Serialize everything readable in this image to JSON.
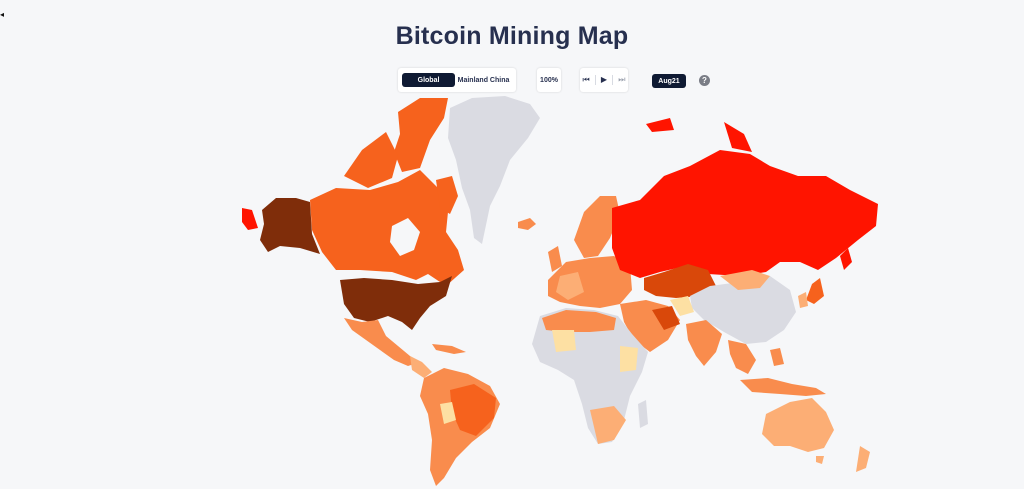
{
  "title": "Bitcoin Mining Map",
  "sidebar_toggle": "◂",
  "region_toggle": {
    "options": [
      "Global",
      "Mainland China"
    ],
    "selected": "Global"
  },
  "zoom_level": "100%",
  "playback": {
    "previous_icon": "⏮",
    "play_icon": "▶",
    "next_icon": "⏭"
  },
  "date": "Aug21",
  "help_icon": "?",
  "colors": {
    "no_data": "#dadbe2",
    "very_low": "#fde0a3",
    "low": "#fcae75",
    "medium": "#f98c4d",
    "high": "#f6621d",
    "very_high": "#d9480a",
    "top": "#ff1400",
    "highest": "#7f2d0a",
    "background": "#f6f7f9"
  },
  "map_regions": [
    {
      "name": "Alaska",
      "level": "highest"
    },
    {
      "name": "Canada",
      "level": "high"
    },
    {
      "name": "United States",
      "level": "highest"
    },
    {
      "name": "Mexico",
      "level": "medium"
    },
    {
      "name": "Greenland",
      "level": "no_data"
    },
    {
      "name": "South America",
      "level": "medium"
    },
    {
      "name": "Europe",
      "level": "medium"
    },
    {
      "name": "Russia",
      "level": "top"
    },
    {
      "name": "Kazakhstan",
      "level": "very_high"
    },
    {
      "name": "China",
      "level": "no_data"
    },
    {
      "name": "Africa",
      "level": "no_data"
    },
    {
      "name": "Middle East",
      "level": "medium"
    },
    {
      "name": "India",
      "level": "medium"
    },
    {
      "name": "Southeast Asia",
      "level": "medium"
    },
    {
      "name": "Australia",
      "level": "low"
    }
  ]
}
